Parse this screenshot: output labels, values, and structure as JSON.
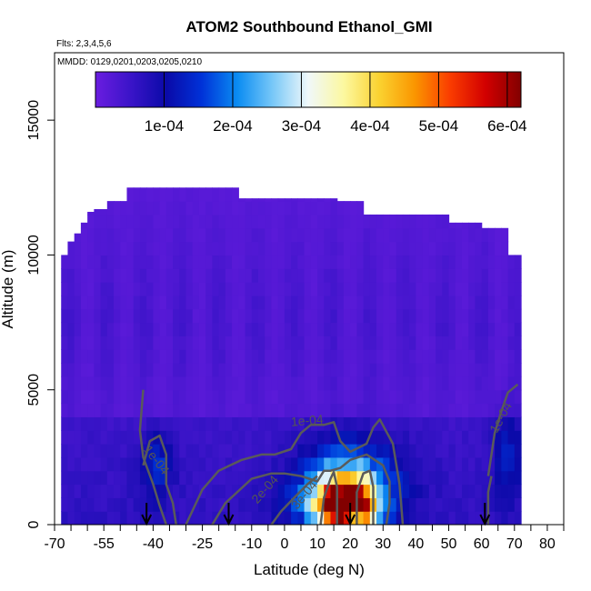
{
  "chart_data": {
    "type": "heatmap",
    "title": "ATOM2 Southbound Ethanol_GMI",
    "notes": [
      "Flts: 2,3,4,5,6",
      "MMDD: 0129,0201,0203,0205,0210"
    ],
    "xlabel": "Latitude (deg N)",
    "ylabel": "Altitude (m)",
    "xlim": [
      -70,
      85
    ],
    "ylim": [
      0,
      17500
    ],
    "x_ticks": [
      -70,
      -55,
      -40,
      -25,
      -10,
      0,
      10,
      20,
      30,
      40,
      50,
      60,
      70,
      80
    ],
    "x_minor_step": 5,
    "y_ticks": [
      0,
      5000,
      10000,
      15000
    ],
    "grid": false,
    "colorbar": {
      "range": [
        0,
        0.00062
      ],
      "tick_values": [
        0.0001,
        0.0002,
        0.0003,
        0.0004,
        0.0005,
        0.0006
      ],
      "tick_labels": [
        "1e-04",
        "2e-04",
        "3e-04",
        "4e-04",
        "5e-04",
        "6e-04"
      ],
      "colors": [
        "#6a1de0",
        "#3a14c8",
        "#0a0aa8",
        "#0032d8",
        "#0a8cf2",
        "#78c8f8",
        "#f0f8fa",
        "#fcf8a0",
        "#fad230",
        "#fa9600",
        "#fa3c00",
        "#d20000",
        "#820000"
      ]
    },
    "surface_columns": [
      {
        "lat": -68,
        "top": 10000
      },
      {
        "lat": -66,
        "top": 10500
      },
      {
        "lat": -64,
        "top": 10800
      },
      {
        "lat": -62,
        "top": 11200
      },
      {
        "lat": -60,
        "top": 11600
      },
      {
        "lat": -57,
        "top": 11700
      },
      {
        "lat": -54,
        "top": 12000
      },
      {
        "lat": -51,
        "top": 12000
      },
      {
        "lat": -48,
        "top": 12500
      },
      {
        "lat": -34,
        "top": 12500
      },
      {
        "lat": -25,
        "top": 12500
      },
      {
        "lat": -17,
        "top": 12500
      },
      {
        "lat": -13,
        "top": 12100
      },
      {
        "lat": 2,
        "top": 12100
      },
      {
        "lat": 17,
        "top": 12000
      },
      {
        "lat": 25,
        "top": 11500
      },
      {
        "lat": 30,
        "top": 11500
      },
      {
        "lat": 40,
        "top": 11500
      },
      {
        "lat": 50,
        "top": 11200
      },
      {
        "lat": 60,
        "top": 11000
      },
      {
        "lat": 65,
        "top": 11000
      },
      {
        "lat": 68,
        "top": 10000
      },
      {
        "lat": 70,
        "top": 10000
      }
    ],
    "lat_range": [
      -68,
      72
    ],
    "contour_labels": [
      "1e-04",
      "1e-04",
      "1e-04",
      "2e-04",
      "3e-04"
    ],
    "arrow_latitudes": [
      -42,
      -17,
      20,
      61
    ]
  }
}
